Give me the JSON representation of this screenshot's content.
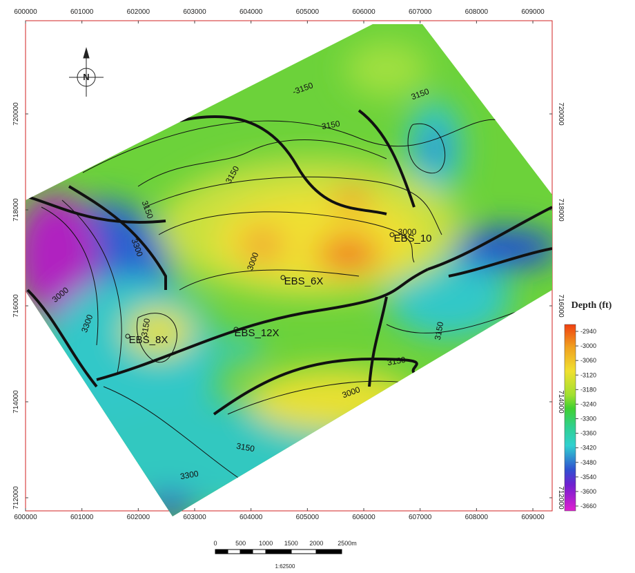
{
  "map": {
    "x_ticks": [
      600000,
      601000,
      602000,
      603000,
      604000,
      605000,
      606000,
      607000,
      608000,
      609000
    ],
    "y_ticks": [
      712000,
      714000,
      716000,
      718000,
      720000
    ],
    "north": "N",
    "contour_labels": [
      "-3150",
      "3150",
      "3150",
      "3150",
      "3150",
      "3000",
      "3000",
      "3300",
      "3000",
      "3150",
      "3300",
      "3000",
      "3150",
      "3300",
      "3150",
      "3150"
    ],
    "wells": [
      "EBS_10",
      "EBS_6X",
      "EBS_8X",
      "EBS_12X"
    ],
    "legend": {
      "title": "Depth (ft)",
      "ticks": [
        -2940,
        -3000,
        -3060,
        -3120,
        -3180,
        -3240,
        -3300,
        -3360,
        -3420,
        -3480,
        -3540,
        -3600,
        -3660
      ]
    },
    "scale_bar": {
      "labels": [
        "0",
        "500",
        "1000",
        "1500",
        "2000",
        "2500m"
      ],
      "scale": "1:62500"
    }
  }
}
